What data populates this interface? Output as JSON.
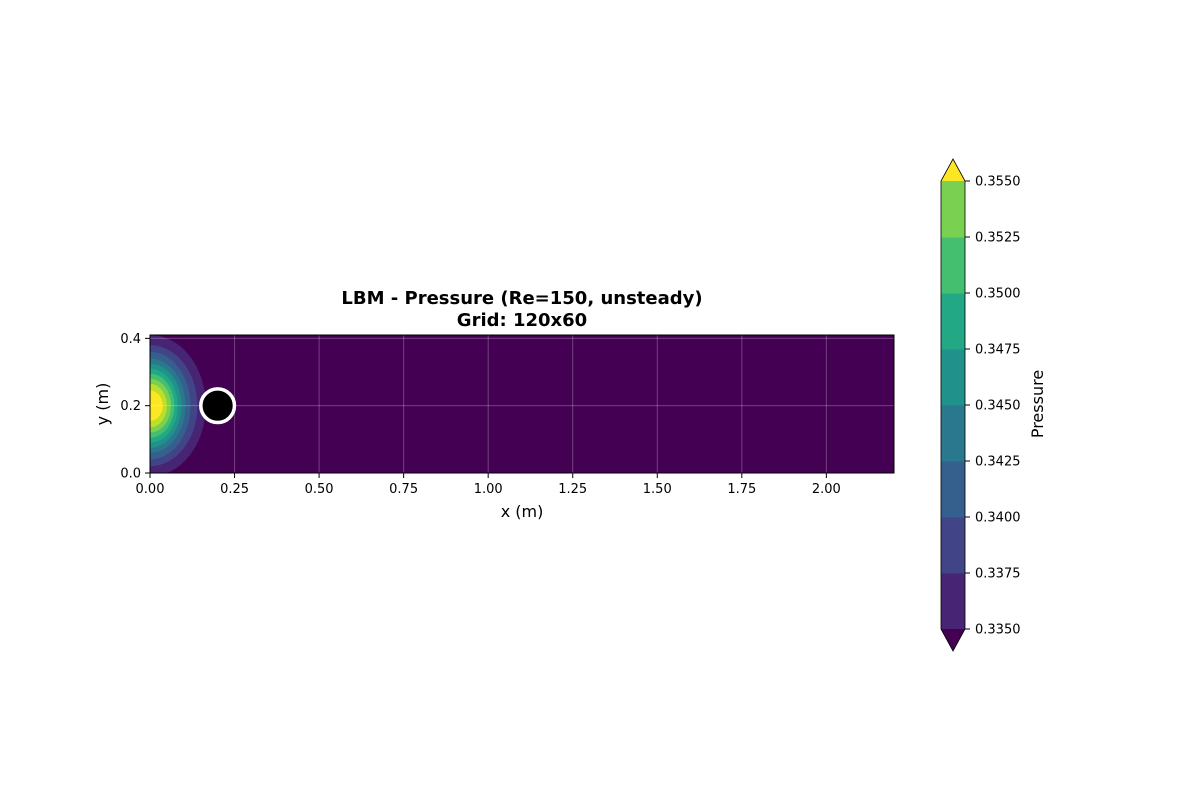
{
  "chart_data": {
    "type": "heatmap",
    "subtype": "filled-contour",
    "title": "LBM - Pressure (Re=150, unsteady)",
    "subtitle": "Grid: 120x60",
    "xlabel": "x (m)",
    "ylabel": "y (m)",
    "xlim": [
      0.0,
      2.2
    ],
    "ylim": [
      0.0,
      0.41
    ],
    "x_ticks": [
      0.0,
      0.25,
      0.5,
      0.75,
      1.0,
      1.25,
      1.5,
      1.75,
      2.0
    ],
    "x_tick_labels": [
      "0.00",
      "0.25",
      "0.50",
      "0.75",
      "1.00",
      "1.25",
      "1.50",
      "1.75",
      "2.00"
    ],
    "y_ticks": [
      0.0,
      0.2,
      0.4
    ],
    "y_tick_labels": [
      "0.0",
      "0.2",
      "0.4"
    ],
    "grid": true,
    "colormap": "viridis",
    "colorbar": {
      "label": "Pressure",
      "levels": [
        0.335,
        0.3375,
        0.34,
        0.3425,
        0.345,
        0.3475,
        0.35,
        0.3525,
        0.355
      ],
      "tick_labels": [
        "0.3350",
        "0.3375",
        "0.3400",
        "0.3425",
        "0.3450",
        "0.3475",
        "0.3500",
        "0.3525",
        "0.3550"
      ],
      "extend": "both",
      "colors": [
        "#482475",
        "#414487",
        "#355f8d",
        "#2a788e",
        "#21918c",
        "#22a884",
        "#44bf70",
        "#7ad151",
        "#bddf26"
      ],
      "under_color": "#440154",
      "over_color": "#fde725"
    },
    "field": {
      "background_level_color": "#440154",
      "inlet_peak": {
        "x": 0.0,
        "y": 0.2,
        "value": 0.356
      },
      "contours_from_inlet": [
        {
          "rx": 0.165,
          "ry": 0.21,
          "color": "#482475"
        },
        {
          "rx": 0.14,
          "ry": 0.18,
          "color": "#414487"
        },
        {
          "rx": 0.12,
          "ry": 0.16,
          "color": "#355f8d"
        },
        {
          "rx": 0.105,
          "ry": 0.14,
          "color": "#2a788e"
        },
        {
          "rx": 0.093,
          "ry": 0.125,
          "color": "#21918c"
        },
        {
          "rx": 0.082,
          "ry": 0.11,
          "color": "#22a884"
        },
        {
          "rx": 0.072,
          "ry": 0.095,
          "color": "#44bf70"
        },
        {
          "rx": 0.062,
          "ry": 0.08,
          "color": "#7ad151"
        },
        {
          "rx": 0.05,
          "ry": 0.065,
          "color": "#bddf26"
        },
        {
          "rx": 0.038,
          "ry": 0.045,
          "color": "#fde725"
        }
      ]
    },
    "cylinder": {
      "cx": 0.2,
      "cy": 0.2,
      "r": 0.05,
      "fill": "#000000",
      "edge": "#ffffff"
    }
  }
}
